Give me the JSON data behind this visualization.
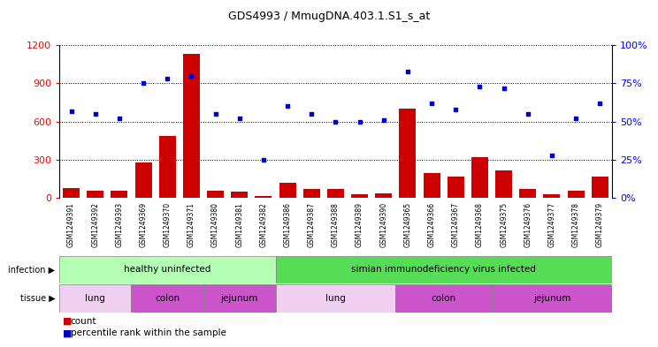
{
  "title": "GDS4993 / MmugDNA.403.1.S1_s_at",
  "samples": [
    "GSM1249391",
    "GSM1249392",
    "GSM1249393",
    "GSM1249369",
    "GSM1249370",
    "GSM1249371",
    "GSM1249380",
    "GSM1249381",
    "GSM1249382",
    "GSM1249386",
    "GSM1249387",
    "GSM1249388",
    "GSM1249389",
    "GSM1249390",
    "GSM1249365",
    "GSM1249366",
    "GSM1249367",
    "GSM1249368",
    "GSM1249375",
    "GSM1249376",
    "GSM1249377",
    "GSM1249378",
    "GSM1249379"
  ],
  "counts": [
    80,
    60,
    55,
    280,
    490,
    1130,
    60,
    50,
    20,
    120,
    70,
    70,
    30,
    40,
    700,
    200,
    170,
    320,
    220,
    70,
    30,
    60,
    170
  ],
  "percentiles": [
    57,
    55,
    52,
    75,
    78,
    80,
    55,
    52,
    25,
    60,
    55,
    50,
    50,
    51,
    83,
    62,
    58,
    73,
    72,
    55,
    28,
    52,
    62
  ],
  "ylim_left": [
    0,
    1200
  ],
  "ylim_right": [
    0,
    100
  ],
  "yticks_left": [
    0,
    300,
    600,
    900,
    1200
  ],
  "yticks_right": [
    0,
    25,
    50,
    75,
    100
  ],
  "bar_color": "#cc0000",
  "dot_color": "#0000cc",
  "plot_bg_color": "#ffffff",
  "xtick_bg_color": "#d8d8d8",
  "infection_healthy_color": "#b3ffb3",
  "infection_infected_color": "#55dd55",
  "tissue_lung_color": "#f0d0f0",
  "tissue_colon_color": "#cc55cc",
  "tissue_jejunum_color": "#cc55cc",
  "healthy_count": 9,
  "n_samples": 23,
  "tissue_bounds": [
    {
      "label": "lung",
      "start": 0,
      "end": 3,
      "color": "#f0d0f0"
    },
    {
      "label": "colon",
      "start": 3,
      "end": 6,
      "color": "#cc55cc"
    },
    {
      "label": "jejunum",
      "start": 6,
      "end": 9,
      "color": "#cc55cc"
    },
    {
      "label": "lung",
      "start": 9,
      "end": 14,
      "color": "#f0d0f0"
    },
    {
      "label": "colon",
      "start": 14,
      "end": 18,
      "color": "#cc55cc"
    },
    {
      "label": "jejunum",
      "start": 18,
      "end": 23,
      "color": "#cc55cc"
    }
  ]
}
